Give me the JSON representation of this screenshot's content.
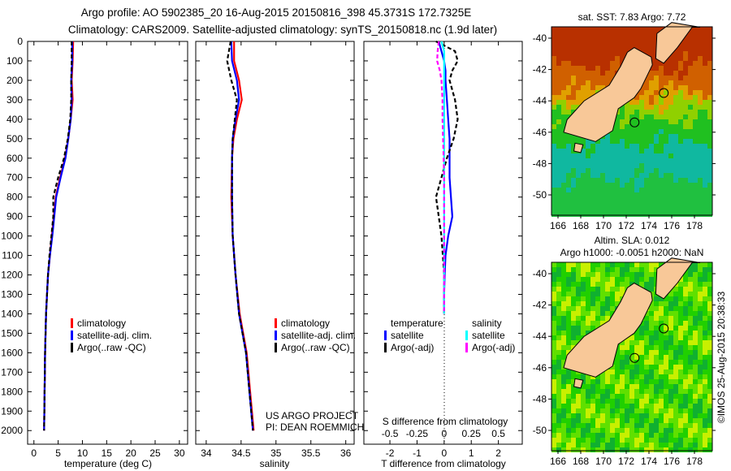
{
  "title_line1": "Argo profile: AO 5902385_20 16-Aug-2015 20150816_398 45.3731S 172.7325E",
  "title_line2": "Climatology: CARS2009. Satellite-adjusted climatology: synTS_20150818.nc (1.9d later)",
  "chart_data": [
    {
      "type": "line",
      "name": "temperature-profile",
      "xlabel": "temperature (deg C)",
      "ylabel": "",
      "xlim": [
        -1.3,
        31.7
      ],
      "ylim": [
        2070,
        0
      ],
      "xticks": [
        0,
        5,
        10,
        15,
        20,
        25,
        30
      ],
      "yticks": [
        0,
        100,
        200,
        300,
        400,
        500,
        600,
        700,
        800,
        900,
        1000,
        1100,
        1200,
        1300,
        1400,
        1500,
        1600,
        1700,
        1800,
        1900,
        2000
      ],
      "legend": [
        "climatology",
        "satellite-adj. clim.",
        "Argo(..raw -QC)"
      ],
      "depth": [
        0,
        100,
        200,
        300,
        400,
        500,
        600,
        700,
        800,
        900,
        1000,
        1100,
        1200,
        1300,
        1400,
        1500,
        1600,
        1800,
        2000
      ],
      "series": [
        {
          "name": "climatology",
          "color": "#ff0000",
          "values": [
            8.1,
            8.0,
            7.8,
            8.0,
            7.6,
            7.1,
            6.4,
            5.4,
            4.5,
            4.1,
            3.7,
            3.3,
            2.9,
            2.7,
            2.5,
            2.4,
            2.3,
            2.2,
            2.1
          ]
        },
        {
          "name": "satellite-adj. clim.",
          "color": "#0000ff",
          "values": [
            7.9,
            7.9,
            7.7,
            7.8,
            7.6,
            7.1,
            6.5,
            5.5,
            4.6,
            4.2,
            3.8,
            3.3,
            2.9,
            2.7,
            2.5,
            2.4,
            2.3,
            2.2,
            2.1
          ]
        },
        {
          "name": "Argo(..raw -QC)",
          "color": "#000000",
          "dash": true,
          "values": [
            7.8,
            7.8,
            7.7,
            7.7,
            7.5,
            7.0,
            6.2,
            5.0,
            4.0,
            4.0,
            3.6,
            3.2,
            2.9,
            2.7,
            2.5,
            2.4,
            2.3,
            2.2,
            2.1
          ]
        }
      ]
    },
    {
      "type": "line",
      "name": "salinity-profile",
      "xlabel": "salinity",
      "xlim": [
        33.85,
        36.12
      ],
      "ylim": [
        2070,
        0
      ],
      "xticks": [
        34,
        34.5,
        35,
        35.5,
        36
      ],
      "legend": [
        "climatology",
        "satellite-adj. clim.",
        "Argo(..raw -QC)"
      ],
      "annotation": [
        "US ARGO PROJECT",
        "PI: DEAN ROEMMICH"
      ],
      "depth": [
        0,
        100,
        200,
        300,
        400,
        500,
        600,
        800,
        1000,
        1200,
        1400,
        1500,
        1600,
        1800,
        2000
      ],
      "series": [
        {
          "name": "climatology",
          "color": "#ff0000",
          "values": [
            34.4,
            34.4,
            34.47,
            34.51,
            34.44,
            34.39,
            34.37,
            34.36,
            34.38,
            34.42,
            34.48,
            34.53,
            34.58,
            34.63,
            34.68
          ]
        },
        {
          "name": "satellite-adj. clim.",
          "color": "#0000ff",
          "values": [
            34.36,
            34.37,
            34.44,
            34.47,
            34.42,
            34.38,
            34.37,
            34.37,
            34.38,
            34.42,
            34.47,
            34.52,
            34.57,
            34.62,
            34.67
          ]
        },
        {
          "name": "Argo(..raw -QC)",
          "color": "#000000",
          "dash": true,
          "values": [
            34.35,
            34.3,
            34.36,
            34.44,
            34.41,
            34.38,
            34.37,
            34.37,
            34.38,
            34.42,
            34.47,
            34.52,
            34.57,
            34.62,
            34.67
          ]
        }
      ]
    },
    {
      "type": "line",
      "name": "difference-profile",
      "xlabel": "T difference from climatology",
      "xlabel_top": "S difference from climatology",
      "xlim": [
        -2.96,
        2.88
      ],
      "xticks": [
        -2,
        -1,
        0,
        1,
        2
      ],
      "sticks": [
        "-0.5",
        "-0.25",
        "0",
        "0.25",
        "0.5"
      ],
      "legend_temperature_title": "temperature",
      "legend_salinity_title": "salinity",
      "legend": [
        "satellite",
        "Argo(-adj)",
        "satellite",
        "Argo(-adj)"
      ],
      "depth": [
        0,
        50,
        100,
        150,
        200,
        300,
        400,
        500,
        600,
        700,
        800,
        900,
        1000,
        1100,
        1200,
        1300,
        1400
      ],
      "series": [
        {
          "name": "T satellite",
          "color": "#0000ff",
          "values": [
            -0.2,
            -0.1,
            0,
            0.05,
            0.05,
            0.1,
            0.15,
            0.2,
            0.2,
            0.2,
            0.25,
            0.3,
            0.15,
            0.05,
            0.02,
            0.0,
            0.0
          ]
        },
        {
          "name": "T Argo(-adj)",
          "color": "#000000",
          "dash": true,
          "values": [
            -0.3,
            0.4,
            0.5,
            0.3,
            0.2,
            0.4,
            0.5,
            0.35,
            0.1,
            -0.1,
            -0.3,
            -0.2,
            -0.1,
            -0.05,
            0,
            0,
            0
          ]
        },
        {
          "name": "S satellite",
          "color": "#00ffff",
          "values": [
            -0.05,
            0.0,
            0.0,
            0.0,
            0.0,
            0.0,
            0.0,
            0.0,
            0.0,
            0.0,
            0.0,
            0.0,
            0.0,
            0.0,
            0.0,
            0.0,
            0.0
          ]
        },
        {
          "name": "S Argo(-adj)",
          "color": "#ff00ff",
          "dash": true,
          "values": [
            -0.1,
            -0.12,
            -0.13,
            -0.08,
            -0.05,
            -0.03,
            -0.03,
            -0.02,
            -0.01,
            0,
            0,
            0,
            0,
            0,
            0,
            0,
            0
          ]
        }
      ]
    }
  ],
  "maps": [
    {
      "title": "sat. SST: 7.83 Argo: 7.72",
      "kind": "sst"
    },
    {
      "title1": "Altim. SLA: 0.012",
      "title2": "Argo h1000: -0.0051 h2000: NaN",
      "kind": "sla"
    }
  ],
  "map_lat_ticks": [
    "-40",
    "-42",
    "-44",
    "-46",
    "-48",
    "-50"
  ],
  "map_lon_ticks": [
    "166",
    "168",
    "170",
    "172",
    "174",
    "176",
    "178"
  ],
  "argo_position": {
    "lat": -45.3731,
    "lon": 172.7325
  },
  "credit": "©IMOS 25-Aug-2015 20:38:33"
}
